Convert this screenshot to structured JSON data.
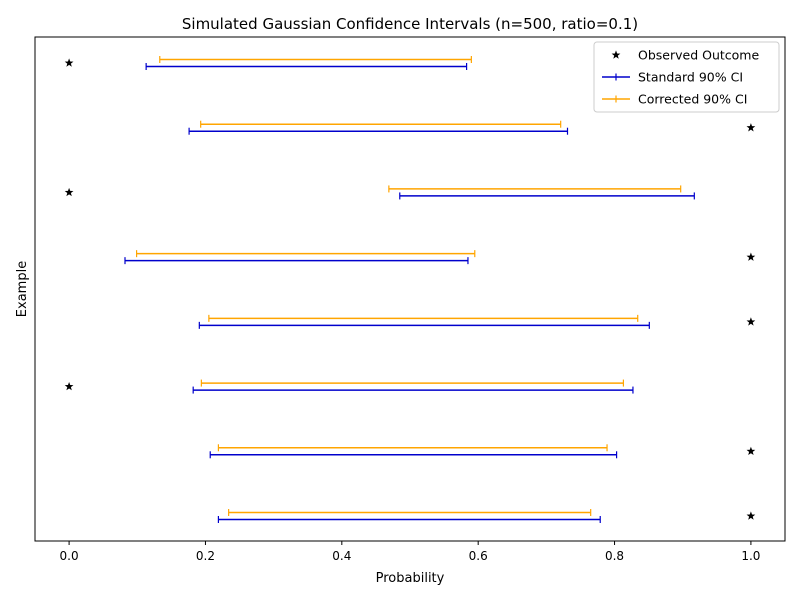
{
  "chart_data": {
    "type": "errorbar",
    "title": "Simulated Gaussian Confidence Intervals (n=500, ratio=0.1)",
    "xlabel": "Probability",
    "ylabel": "Example",
    "xlim": [
      -0.05,
      1.05
    ],
    "xticks": [
      0.0,
      0.2,
      0.4,
      0.6,
      0.8,
      1.0
    ],
    "xtick_labels": [
      "0.0",
      "0.2",
      "0.4",
      "0.6",
      "0.8",
      "1.0"
    ],
    "grid": false,
    "legend": {
      "position": "top-right",
      "entries": [
        "Observed Outcome",
        "Standard 90% CI",
        "Corrected 90% CI"
      ]
    },
    "colors": {
      "standard": "#0000cc",
      "corrected": "#ffa500",
      "outcome": "#000000"
    },
    "examples": [
      {
        "outcome": 0,
        "standard": [
          0.113,
          0.583
        ],
        "corrected": [
          0.133,
          0.59
        ]
      },
      {
        "outcome": 1,
        "standard": [
          0.176,
          0.731
        ],
        "corrected": [
          0.193,
          0.721
        ]
      },
      {
        "outcome": 0,
        "standard": [
          0.485,
          0.917
        ],
        "corrected": [
          0.469,
          0.897
        ]
      },
      {
        "outcome": 1,
        "standard": [
          0.082,
          0.585
        ],
        "corrected": [
          0.099,
          0.595
        ]
      },
      {
        "outcome": 1,
        "standard": [
          0.191,
          0.851
        ],
        "corrected": [
          0.205,
          0.834
        ]
      },
      {
        "outcome": 0,
        "standard": [
          0.182,
          0.827
        ],
        "corrected": [
          0.194,
          0.813
        ]
      },
      {
        "outcome": 1,
        "standard": [
          0.207,
          0.803
        ],
        "corrected": [
          0.219,
          0.789
        ]
      },
      {
        "outcome": 1,
        "standard": [
          0.219,
          0.779
        ],
        "corrected": [
          0.234,
          0.765
        ]
      }
    ]
  }
}
